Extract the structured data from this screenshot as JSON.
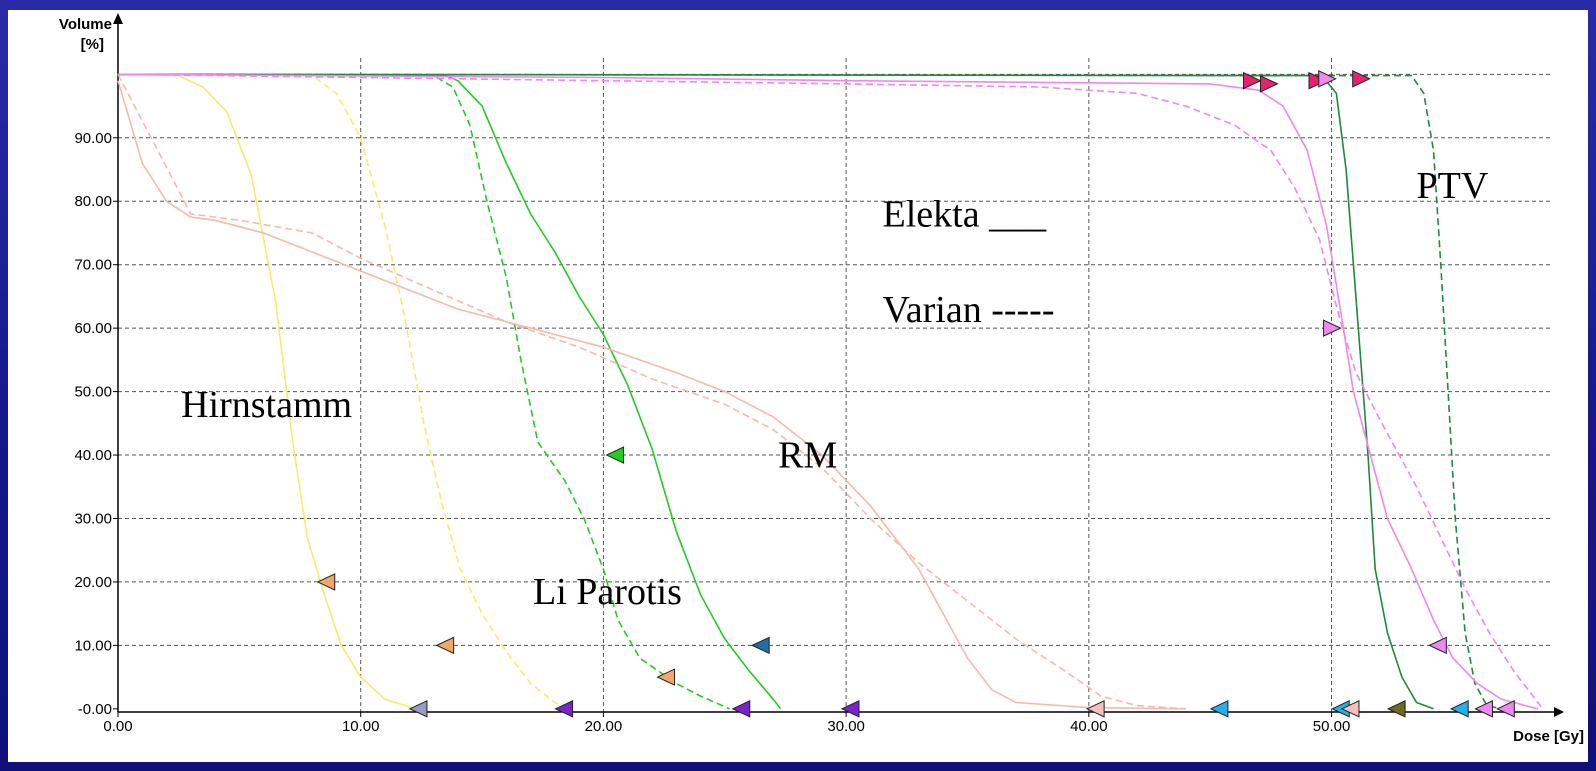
{
  "chart_data": {
    "type": "line",
    "xlabel": "Dose [Gy]",
    "ylabel_line1": "Volume",
    "ylabel_line2": "[%]",
    "xlim": [
      0,
      59
    ],
    "ylim": [
      -0.5,
      101
    ],
    "grid": true,
    "x_ticks": [
      {
        "value": 0,
        "label": "0.00"
      },
      {
        "value": 10,
        "label": "10.00"
      },
      {
        "value": 20,
        "label": "20.00"
      },
      {
        "value": 30,
        "label": "30.00"
      },
      {
        "value": 40,
        "label": "40.00"
      },
      {
        "value": 50,
        "label": "50.00"
      }
    ],
    "y_ticks": [
      {
        "value": 0,
        "label": "-0.00"
      },
      {
        "value": 10,
        "label": "10.00"
      },
      {
        "value": 20,
        "label": "20.00"
      },
      {
        "value": 30,
        "label": "30.00"
      },
      {
        "value": 40,
        "label": "40.00"
      },
      {
        "value": 50,
        "label": "50.00"
      },
      {
        "value": 60,
        "label": "60.00"
      },
      {
        "value": 70,
        "label": "70.00"
      },
      {
        "value": 80,
        "label": "80.00"
      },
      {
        "value": 90,
        "label": "90.00"
      }
    ],
    "annotations": [
      {
        "text": "Elekta ___",
        "x": 31.5,
        "y": 76
      },
      {
        "text": "Varian -----",
        "x": 31.5,
        "y": 61
      },
      {
        "text": "PTV",
        "x": 53.5,
        "y": 80.5
      },
      {
        "text": "Hirnstamm",
        "x": 2.6,
        "y": 46
      },
      {
        "text": "RM",
        "x": 27.2,
        "y": 38
      },
      {
        "text": "Li Parotis",
        "x": 17.1,
        "y": 16.5
      }
    ],
    "series": [
      {
        "style": "solid",
        "color": "#f5ec6a",
        "points": [
          [
            0,
            100
          ],
          [
            2.5,
            99.8
          ],
          [
            3.5,
            98
          ],
          [
            4.5,
            94
          ],
          [
            5.5,
            84
          ],
          [
            6.5,
            64
          ],
          [
            7.2,
            42
          ],
          [
            7.8,
            27
          ],
          [
            8.5,
            18
          ],
          [
            9.2,
            10
          ],
          [
            10,
            5
          ],
          [
            11,
            1.5
          ],
          [
            12,
            0.3
          ],
          [
            12.6,
            0
          ]
        ]
      },
      {
        "style": "dashed",
        "color": "#f5ec6a",
        "points": [
          [
            0,
            100
          ],
          [
            8,
            99.8
          ],
          [
            9,
            97
          ],
          [
            10,
            90
          ],
          [
            11,
            76
          ],
          [
            11.8,
            62
          ],
          [
            12.6,
            45
          ],
          [
            13.3,
            33
          ],
          [
            14.1,
            22
          ],
          [
            15,
            15
          ],
          [
            16,
            9
          ],
          [
            17,
            4
          ],
          [
            18,
            1
          ],
          [
            18.6,
            0
          ]
        ]
      },
      {
        "style": "solid",
        "color": "#22cc22",
        "points": [
          [
            0,
            100
          ],
          [
            13.5,
            99.8
          ],
          [
            14,
            99
          ],
          [
            15,
            95
          ],
          [
            16,
            86
          ],
          [
            17,
            78
          ],
          [
            18,
            72
          ],
          [
            19,
            65
          ],
          [
            20,
            59
          ],
          [
            21,
            51
          ],
          [
            22,
            41
          ],
          [
            23,
            28
          ],
          [
            24,
            18
          ],
          [
            25,
            11
          ],
          [
            26,
            6
          ],
          [
            27,
            1.5
          ],
          [
            27.3,
            0
          ]
        ]
      },
      {
        "style": "dashed",
        "color": "#22cc22",
        "points": [
          [
            0,
            100
          ],
          [
            13,
            99.8
          ],
          [
            13.8,
            98
          ],
          [
            14.5,
            92
          ],
          [
            15.2,
            80
          ],
          [
            16,
            68
          ],
          [
            16.6,
            55
          ],
          [
            17.3,
            42
          ],
          [
            18.4,
            36
          ],
          [
            19.2,
            30
          ],
          [
            20,
            22
          ],
          [
            20.6,
            14
          ],
          [
            21.5,
            8
          ],
          [
            23,
            4
          ],
          [
            24,
            2
          ],
          [
            25.2,
            0
          ]
        ]
      },
      {
        "style": "solid",
        "color": "#f7b8b0",
        "points": [
          [
            0,
            99
          ],
          [
            1,
            86
          ],
          [
            2,
            80
          ],
          [
            3,
            77.5
          ],
          [
            4,
            77
          ],
          [
            6,
            75
          ],
          [
            8,
            72
          ],
          [
            10,
            69
          ],
          [
            12,
            66
          ],
          [
            14,
            63
          ],
          [
            17,
            60
          ],
          [
            20,
            57
          ],
          [
            23,
            53
          ],
          [
            25,
            50
          ],
          [
            27,
            46
          ],
          [
            29,
            40
          ],
          [
            31,
            32
          ],
          [
            33,
            22
          ],
          [
            34,
            15
          ],
          [
            35,
            8
          ],
          [
            36,
            3
          ],
          [
            37,
            1
          ],
          [
            40,
            0.2
          ],
          [
            44,
            0
          ]
        ]
      },
      {
        "style": "dashed",
        "color": "#f7b8b0",
        "points": [
          [
            0,
            100
          ],
          [
            3,
            78
          ],
          [
            5,
            77
          ],
          [
            8,
            75
          ],
          [
            10,
            71
          ],
          [
            13,
            66
          ],
          [
            16,
            61
          ],
          [
            19,
            57
          ],
          [
            22,
            52
          ],
          [
            25,
            48
          ],
          [
            27,
            44
          ],
          [
            29,
            38
          ],
          [
            31,
            30
          ],
          [
            33,
            23
          ],
          [
            35,
            17
          ],
          [
            37,
            11
          ],
          [
            39,
            6
          ],
          [
            40.5,
            2
          ],
          [
            42,
            0.5
          ],
          [
            44,
            0
          ]
        ]
      },
      {
        "style": "solid",
        "color": "#1f8a3c",
        "points": [
          [
            0,
            100
          ],
          [
            49.6,
            99.8
          ],
          [
            50.2,
            97
          ],
          [
            50.6,
            85
          ],
          [
            51.1,
            60
          ],
          [
            51.5,
            40
          ],
          [
            51.8,
            22
          ],
          [
            52.3,
            12
          ],
          [
            52.9,
            5
          ],
          [
            53.5,
            1
          ],
          [
            54.2,
            0
          ]
        ]
      },
      {
        "style": "dashed",
        "color": "#1f8a3c",
        "points": [
          [
            0,
            100
          ],
          [
            53.3,
            99.8
          ],
          [
            53.8,
            97
          ],
          [
            54.2,
            88
          ],
          [
            54.5,
            70
          ],
          [
            54.8,
            50
          ],
          [
            55.1,
            30
          ],
          [
            55.5,
            12
          ],
          [
            55.9,
            4
          ],
          [
            56.4,
            0.5
          ],
          [
            57,
            0
          ]
        ]
      },
      {
        "style": "solid",
        "color": "#ee88ee",
        "points": [
          [
            0,
            100
          ],
          [
            20,
            99.5
          ],
          [
            30,
            99
          ],
          [
            45,
            98.5
          ],
          [
            47,
            97.5
          ],
          [
            48,
            95
          ],
          [
            49,
            88
          ],
          [
            49.8,
            76
          ],
          [
            50.4,
            62
          ],
          [
            50.9,
            50
          ],
          [
            51.6,
            40
          ],
          [
            52.3,
            30
          ],
          [
            53.3,
            22
          ],
          [
            54.2,
            14
          ],
          [
            55,
            8
          ],
          [
            56,
            4
          ],
          [
            57,
            1.5
          ],
          [
            58.5,
            0
          ]
        ]
      },
      {
        "style": "dashed",
        "color": "#ee88ee",
        "points": [
          [
            0,
            100
          ],
          [
            10,
            99.5
          ],
          [
            20,
            99
          ],
          [
            30,
            98.5
          ],
          [
            38,
            98
          ],
          [
            42,
            97
          ],
          [
            44,
            95
          ],
          [
            46,
            92
          ],
          [
            47.5,
            88
          ],
          [
            48.5,
            82
          ],
          [
            49.5,
            74
          ],
          [
            50.3,
            62
          ],
          [
            51,
            53
          ],
          [
            51.8,
            47
          ],
          [
            52.5,
            42
          ],
          [
            53.5,
            35
          ],
          [
            54.5,
            27
          ],
          [
            55.5,
            19
          ],
          [
            56.5,
            12
          ],
          [
            57.5,
            6
          ],
          [
            58.7,
            0
          ]
        ]
      }
    ],
    "markers": [
      {
        "x": 8.6,
        "y": 20,
        "dir": "left",
        "fill": "#f2a66a"
      },
      {
        "x": 13.5,
        "y": 10,
        "dir": "left",
        "fill": "#f2a66a"
      },
      {
        "x": 12.4,
        "y": 0,
        "dir": "left",
        "fill": "#9a9ac8"
      },
      {
        "x": 18.4,
        "y": 0,
        "dir": "left",
        "fill": "#7a22cc"
      },
      {
        "x": 20.5,
        "y": 40,
        "dir": "left",
        "fill": "#22cc22"
      },
      {
        "x": 22.6,
        "y": 5,
        "dir": "left",
        "fill": "#f2a66a"
      },
      {
        "x": 25.7,
        "y": 0,
        "dir": "left",
        "fill": "#7a22cc"
      },
      {
        "x": 26.5,
        "y": 10,
        "dir": "left",
        "fill": "#1e6fa8"
      },
      {
        "x": 30.2,
        "y": 0,
        "dir": "left",
        "fill": "#7a22cc"
      },
      {
        "x": 40.3,
        "y": 0,
        "dir": "left",
        "fill": "#f7c0b8"
      },
      {
        "x": 45.4,
        "y": 0,
        "dir": "left",
        "fill": "#22b0e6"
      },
      {
        "x": 50.4,
        "y": 0,
        "dir": "left",
        "fill": "#22b0e6"
      },
      {
        "x": 50.8,
        "y": 0,
        "dir": "left",
        "fill": "#f7c0b8"
      },
      {
        "x": 52.7,
        "y": 0,
        "dir": "left",
        "fill": "#6b6b1e"
      },
      {
        "x": 55.3,
        "y": 0,
        "dir": "left",
        "fill": "#22b0e6"
      },
      {
        "x": 56.3,
        "y": 0,
        "dir": "left",
        "fill": "#ee88ee"
      },
      {
        "x": 57.2,
        "y": 0,
        "dir": "left",
        "fill": "#ee88ee"
      },
      {
        "x": 54.4,
        "y": 10,
        "dir": "left",
        "fill": "#ee88ee"
      },
      {
        "x": 46.7,
        "y": 99,
        "dir": "right",
        "fill": "#e6226e"
      },
      {
        "x": 47.4,
        "y": 98.5,
        "dir": "right",
        "fill": "#e6226e"
      },
      {
        "x": 49.4,
        "y": 99,
        "dir": "right",
        "fill": "#e6226e"
      },
      {
        "x": 49.8,
        "y": 99.3,
        "dir": "right",
        "fill": "#ee88ee"
      },
      {
        "x": 51.2,
        "y": 99.3,
        "dir": "right",
        "fill": "#e6226e"
      },
      {
        "x": 50.0,
        "y": 60,
        "dir": "right",
        "fill": "#ee88ee"
      }
    ]
  }
}
